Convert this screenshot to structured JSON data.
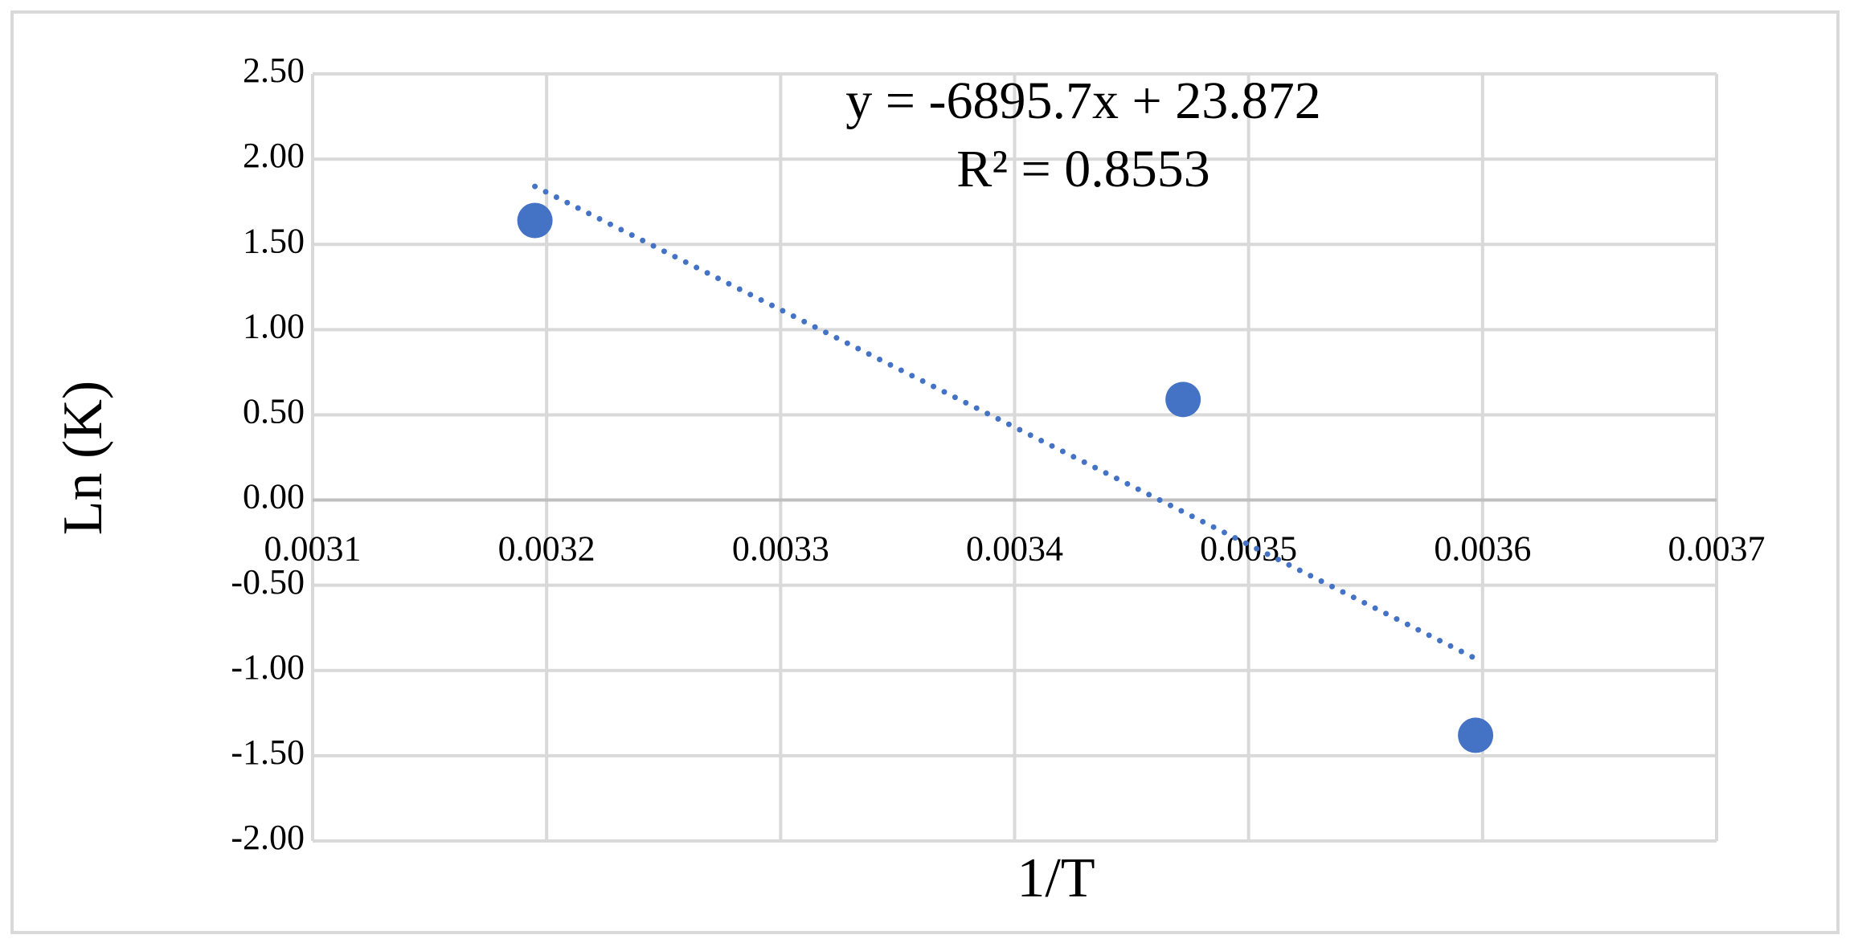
{
  "chart_data": {
    "type": "scatter",
    "annotations": [
      "y = -6895.7x + 23.872",
      "R² = 0.8553"
    ],
    "xlabel": "1/T",
    "ylabel": "Ln (K)",
    "series": [
      {
        "color": "#4472c4",
        "x": [
          0.003195,
          0.003472,
          0.003597
        ],
        "values": [
          1.64,
          0.59,
          -1.38
        ]
      }
    ],
    "trendline": {
      "color": "#4472c4",
      "style": "dotted",
      "x": [
        0.003195,
        0.003597
      ],
      "values": [
        1.84,
        -0.93
      ]
    },
    "xlim": [
      0.0031,
      0.0037
    ],
    "xticks": [
      0.0031,
      0.0032,
      0.0033,
      0.0034,
      0.0035,
      0.0036,
      0.0037
    ],
    "ylim": [
      -2,
      2.5
    ],
    "yticks": [
      {
        "value": -2,
        "label": "-2.00"
      },
      {
        "value": -1.5,
        "label": "-1.50"
      },
      {
        "value": -1,
        "label": "-1.00"
      },
      {
        "value": -0.5,
        "label": "-0.50"
      },
      {
        "value": 0,
        "label": "0.00"
      },
      {
        "value": 0.5,
        "label": "0.50"
      },
      {
        "value": 1,
        "label": "1.00"
      },
      {
        "value": 1.5,
        "label": "1.50"
      },
      {
        "value": 2,
        "label": "2.00"
      },
      {
        "value": 2.5,
        "label": "2.50"
      }
    ],
    "grid": true
  }
}
